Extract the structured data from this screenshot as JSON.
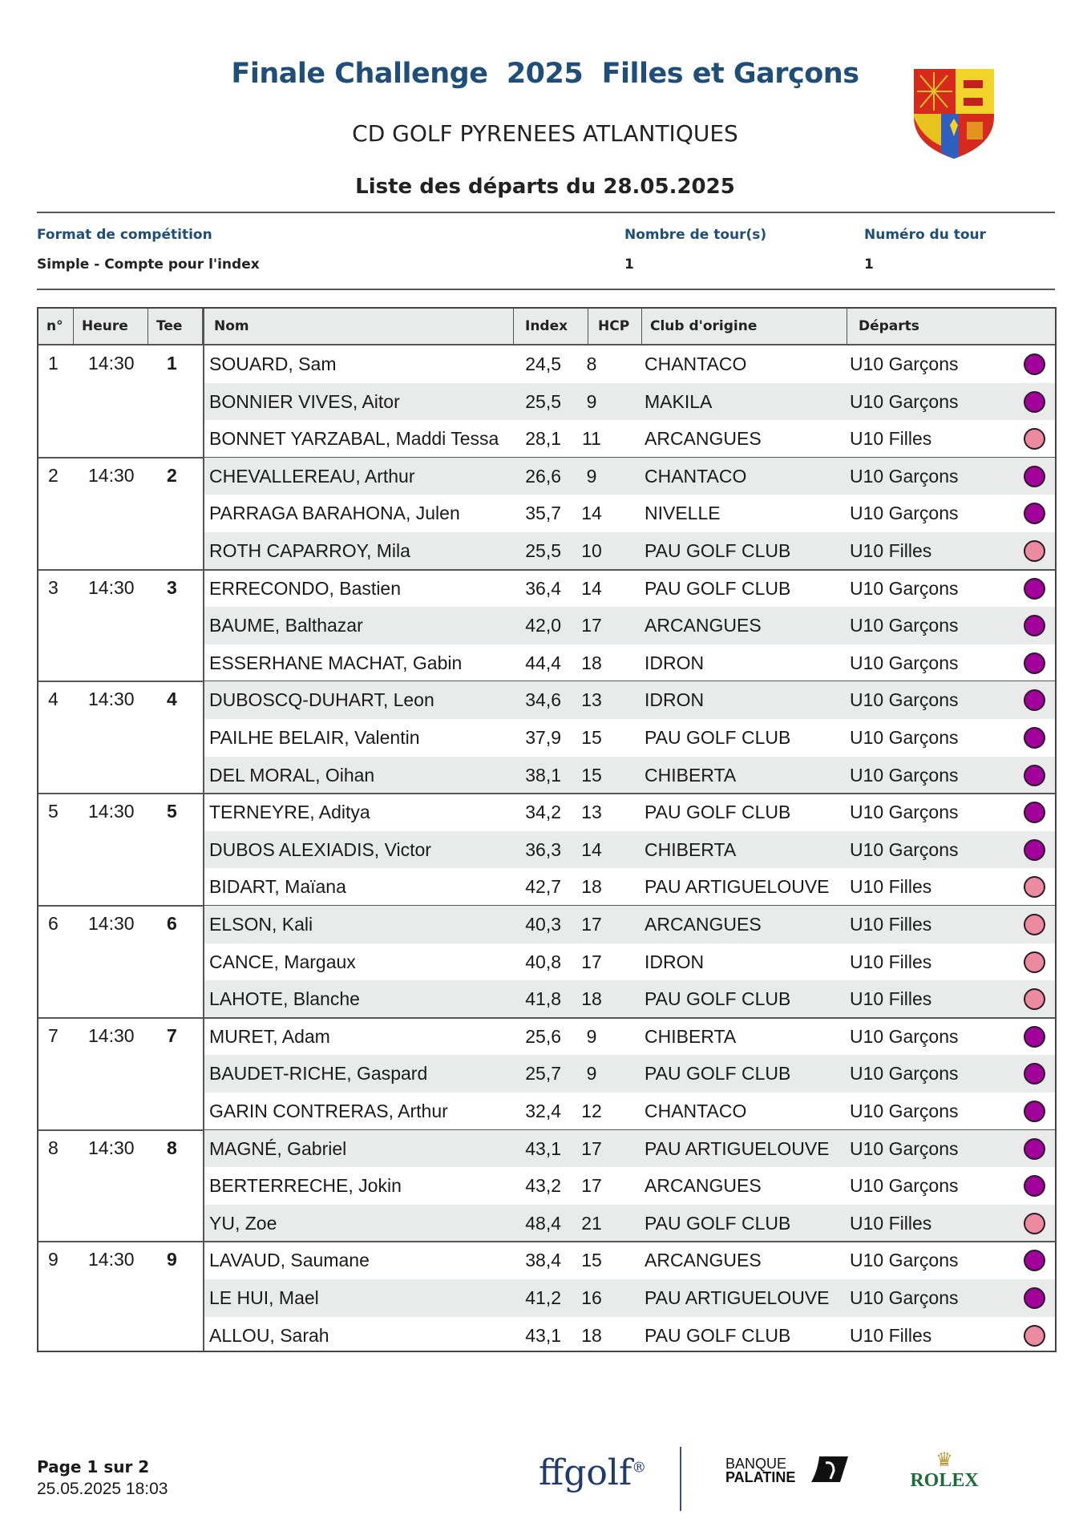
{
  "header": {
    "title": "Finale Challenge  2025  Filles et Garçons",
    "subtitle": "CD GOLF PYRENEES ATLANTIQUES",
    "list_title": "Liste des départs du 28.05.2025"
  },
  "meta": {
    "format_label": "Format de compétition",
    "format_value": "Simple - Compte pour l'index",
    "rounds_label": "Nombre de tour(s)",
    "rounds_value": "1",
    "round_no_label": "Numéro du tour",
    "round_no_value": "1"
  },
  "table": {
    "columns": [
      "n°",
      "Heure",
      "Tee",
      "Nom",
      "Index",
      "HCP",
      "Club d'origine",
      "Départs"
    ],
    "category_colors": {
      "U10 Garçons": "#a1009a",
      "U10 Filles": "#ec8aa0"
    },
    "groups": [
      {
        "n": "1",
        "heure": "14:30",
        "tee": "1",
        "players": [
          {
            "nom": "SOUARD, Sam",
            "index": "24,5",
            "hcp": "8",
            "club": "CHANTACO",
            "depart": "U10 Garçons"
          },
          {
            "nom": "BONNIER VIVES, Aitor",
            "index": "25,5",
            "hcp": "9",
            "club": "MAKILA",
            "depart": "U10 Garçons"
          },
          {
            "nom": "BONNET YARZABAL, Maddi Tessa",
            "index": "28,1",
            "hcp": "11",
            "club": "ARCANGUES",
            "depart": "U10 Filles"
          }
        ]
      },
      {
        "n": "2",
        "heure": "14:30",
        "tee": "2",
        "players": [
          {
            "nom": "CHEVALLEREAU, Arthur",
            "index": "26,6",
            "hcp": "9",
            "club": "CHANTACO",
            "depart": "U10 Garçons"
          },
          {
            "nom": "PARRAGA BARAHONA, Julen",
            "index": "35,7",
            "hcp": "14",
            "club": "NIVELLE",
            "depart": "U10 Garçons"
          },
          {
            "nom": "ROTH CAPARROY, Mila",
            "index": "25,5",
            "hcp": "10",
            "club": "PAU GOLF CLUB",
            "depart": "U10 Filles"
          }
        ]
      },
      {
        "n": "3",
        "heure": "14:30",
        "tee": "3",
        "players": [
          {
            "nom": "ERRECONDO, Bastien",
            "index": "36,4",
            "hcp": "14",
            "club": "PAU GOLF CLUB",
            "depart": "U10 Garçons"
          },
          {
            "nom": "BAUME, Balthazar",
            "index": "42,0",
            "hcp": "17",
            "club": "ARCANGUES",
            "depart": "U10 Garçons"
          },
          {
            "nom": "ESSERHANE MACHAT, Gabin",
            "index": "44,4",
            "hcp": "18",
            "club": "IDRON",
            "depart": "U10 Garçons"
          }
        ]
      },
      {
        "n": "4",
        "heure": "14:30",
        "tee": "4",
        "players": [
          {
            "nom": "DUBOSCQ-DUHART, Leon",
            "index": "34,6",
            "hcp": "13",
            "club": "IDRON",
            "depart": "U10 Garçons"
          },
          {
            "nom": "PAILHE BELAIR, Valentin",
            "index": "37,9",
            "hcp": "15",
            "club": "PAU GOLF CLUB",
            "depart": "U10 Garçons"
          },
          {
            "nom": "DEL MORAL, Oihan",
            "index": "38,1",
            "hcp": "15",
            "club": "CHIBERTA",
            "depart": "U10 Garçons"
          }
        ]
      },
      {
        "n": "5",
        "heure": "14:30",
        "tee": "5",
        "players": [
          {
            "nom": "TERNEYRE, Aditya",
            "index": "34,2",
            "hcp": "13",
            "club": "PAU GOLF CLUB",
            "depart": "U10 Garçons"
          },
          {
            "nom": "DUBOS ALEXIADIS, Victor",
            "index": "36,3",
            "hcp": "14",
            "club": "CHIBERTA",
            "depart": "U10 Garçons"
          },
          {
            "nom": "BIDART, Maïana",
            "index": "42,7",
            "hcp": "18",
            "club": "PAU ARTIGUELOUVE",
            "depart": "U10 Filles"
          }
        ]
      },
      {
        "n": "6",
        "heure": "14:30",
        "tee": "6",
        "players": [
          {
            "nom": "ELSON, Kali",
            "index": "40,3",
            "hcp": "17",
            "club": "ARCANGUES",
            "depart": "U10 Filles"
          },
          {
            "nom": "CANCE, Margaux",
            "index": "40,8",
            "hcp": "17",
            "club": "IDRON",
            "depart": "U10 Filles"
          },
          {
            "nom": "LAHOTE, Blanche",
            "index": "41,8",
            "hcp": "18",
            "club": "PAU GOLF CLUB",
            "depart": "U10 Filles"
          }
        ]
      },
      {
        "n": "7",
        "heure": "14:30",
        "tee": "7",
        "players": [
          {
            "nom": "MURET, Adam",
            "index": "25,6",
            "hcp": "9",
            "club": "CHIBERTA",
            "depart": "U10 Garçons"
          },
          {
            "nom": "BAUDET-RICHE, Gaspard",
            "index": "25,7",
            "hcp": "9",
            "club": "PAU GOLF CLUB",
            "depart": "U10 Garçons"
          },
          {
            "nom": "GARIN CONTRERAS, Arthur",
            "index": "32,4",
            "hcp": "12",
            "club": "CHANTACO",
            "depart": "U10 Garçons"
          }
        ]
      },
      {
        "n": "8",
        "heure": "14:30",
        "tee": "8",
        "players": [
          {
            "nom": "MAGNÉ, Gabriel",
            "index": "43,1",
            "hcp": "17",
            "club": "PAU ARTIGUELOUVE",
            "depart": "U10 Garçons"
          },
          {
            "nom": "BERTERRECHE, Jokin",
            "index": "43,2",
            "hcp": "17",
            "club": "ARCANGUES",
            "depart": "U10 Garçons"
          },
          {
            "nom": "YU, Zoe",
            "index": "48,4",
            "hcp": "21",
            "club": "PAU GOLF CLUB",
            "depart": "U10 Filles"
          }
        ]
      },
      {
        "n": "9",
        "heure": "14:30",
        "tee": "9",
        "players": [
          {
            "nom": "LAVAUD, Saumane",
            "index": "38,4",
            "hcp": "15",
            "club": "ARCANGUES",
            "depart": "U10 Garçons"
          },
          {
            "nom": "LE HUI, Mael",
            "index": "41,2",
            "hcp": "16",
            "club": "PAU ARTIGUELOUVE",
            "depart": "U10 Garçons"
          },
          {
            "nom": "ALLOU, Sarah",
            "index": "43,1",
            "hcp": "18",
            "club": "PAU GOLF CLUB",
            "depart": "U10 Filles"
          }
        ]
      }
    ]
  },
  "footer": {
    "page": "Page 1 sur 2",
    "datetime": "25.05.2025 18:03",
    "logos": {
      "ffgolf": "ffgolf",
      "banque_line1": "BANQUE",
      "banque_line2": "PALATINE",
      "rolex": "ROLEX"
    }
  }
}
